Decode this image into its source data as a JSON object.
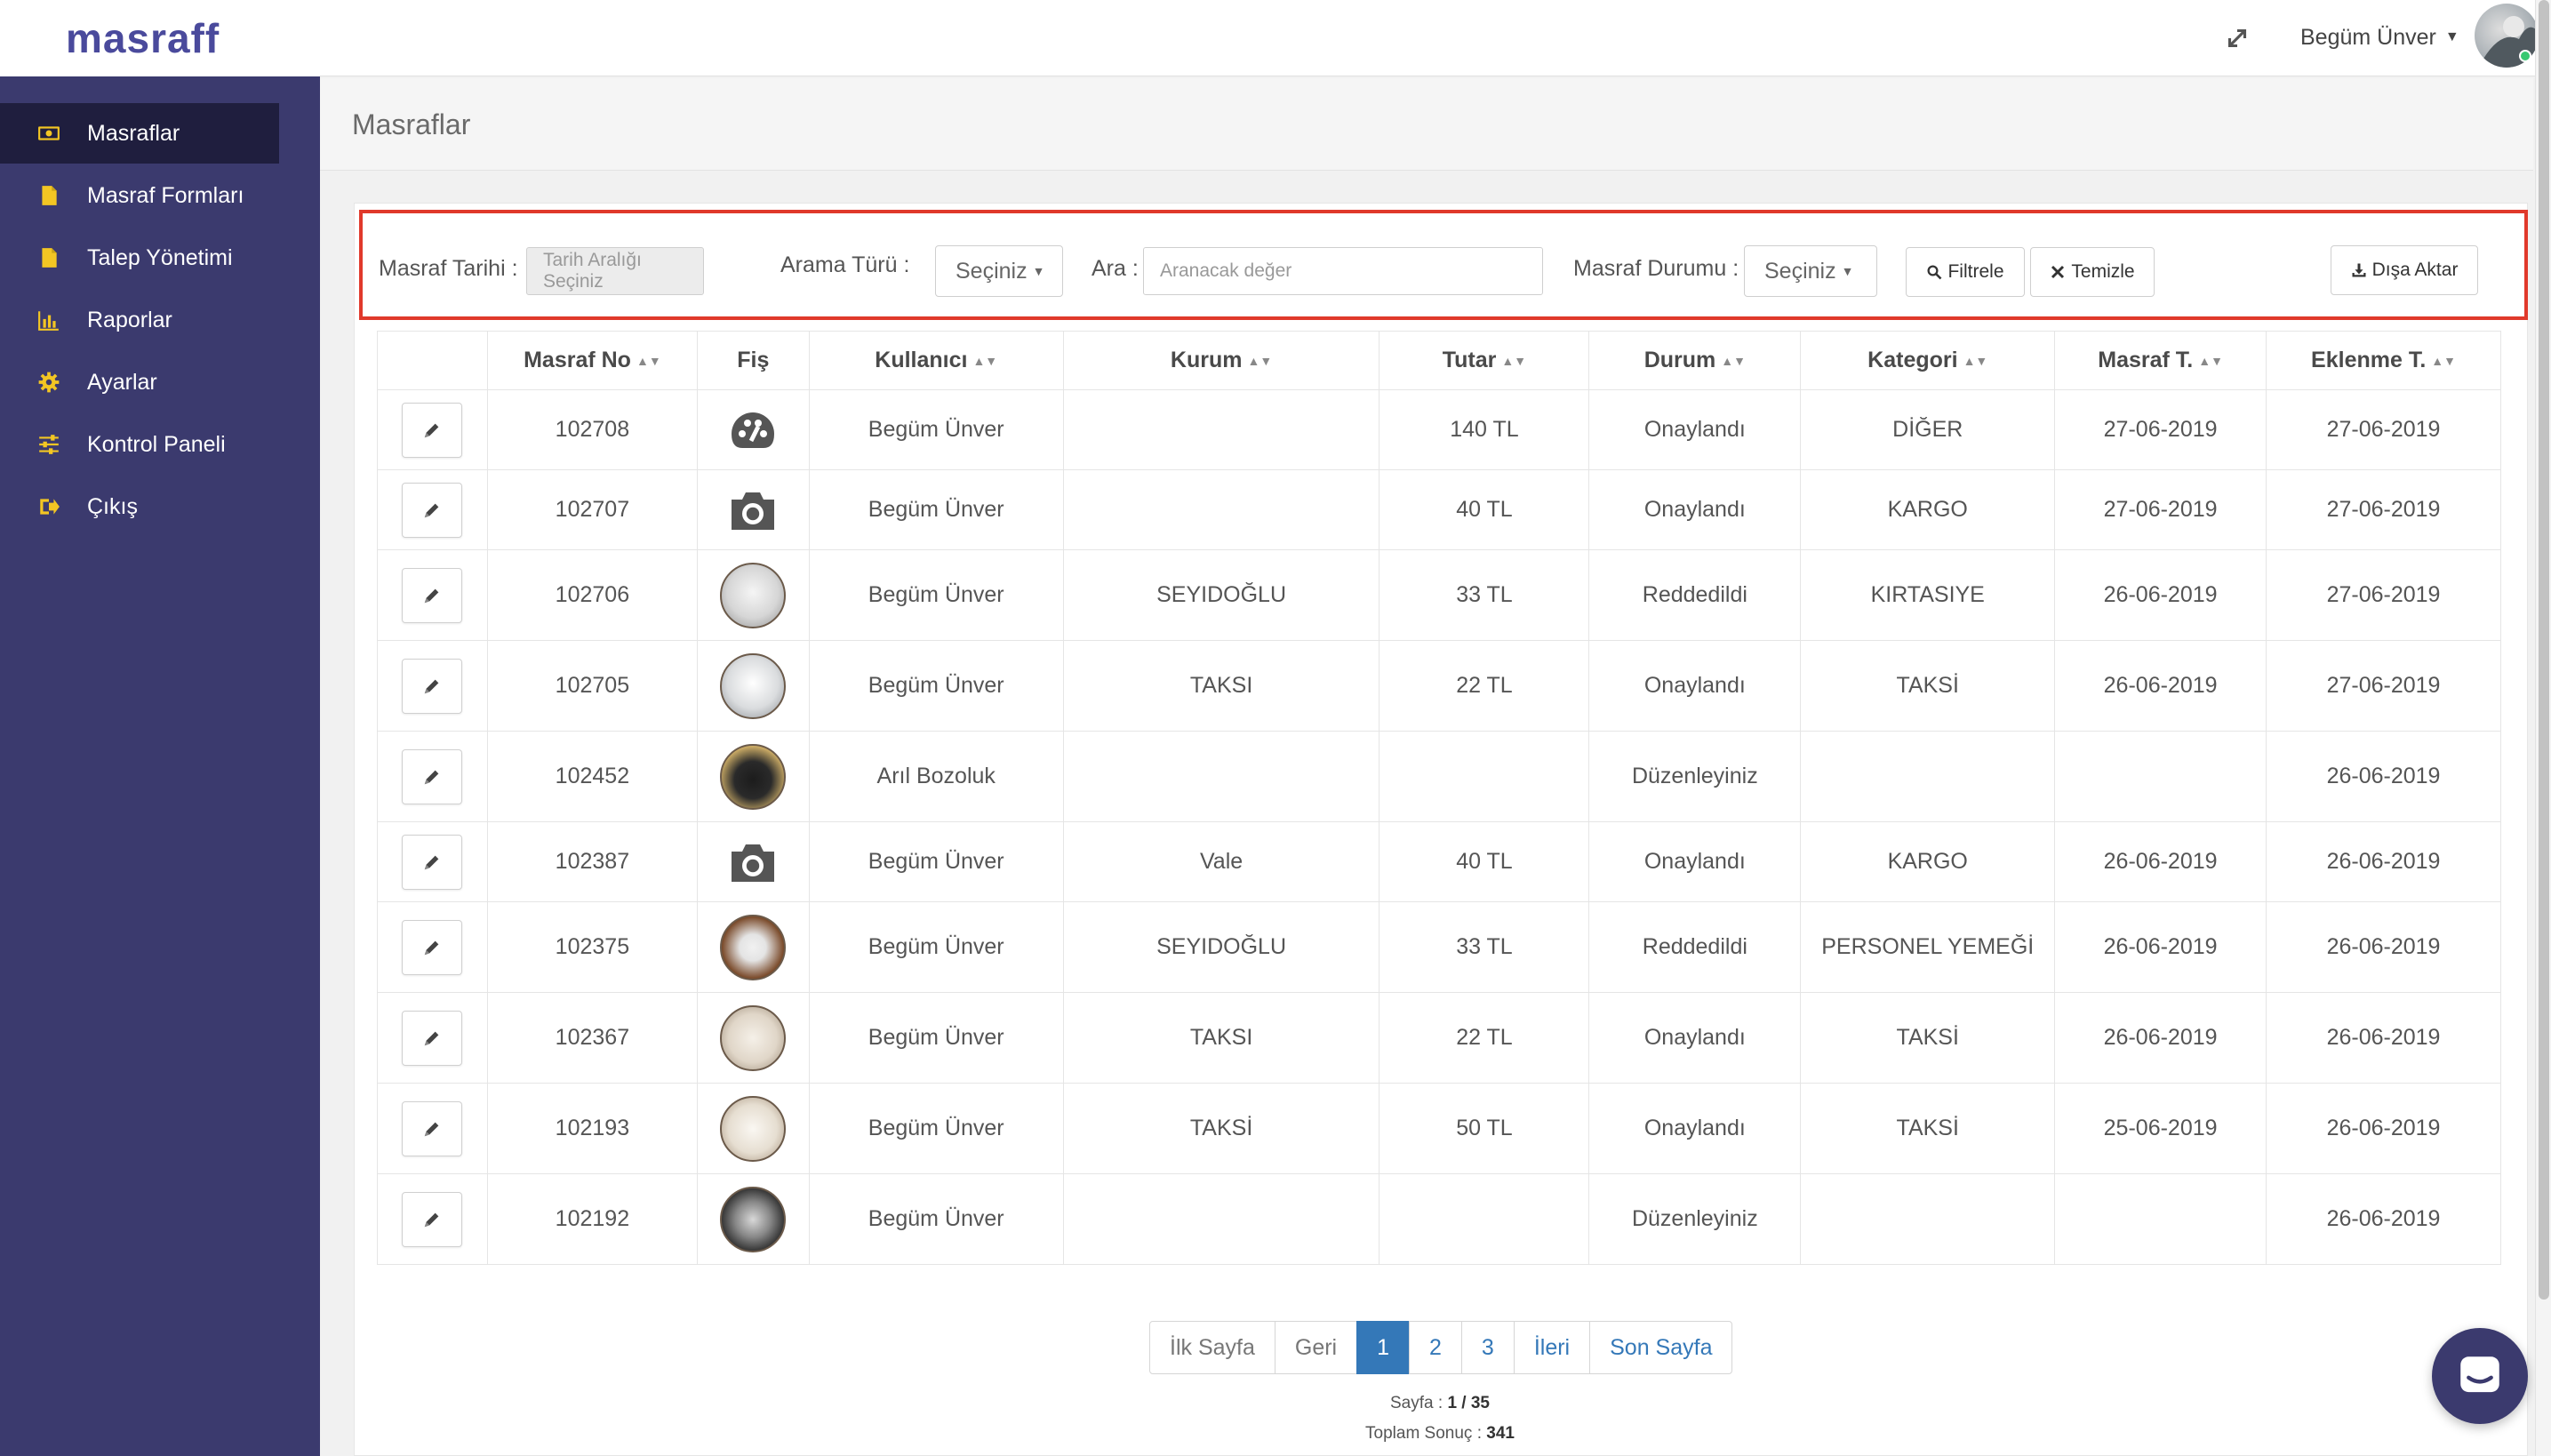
{
  "app": {
    "logo": "masraff"
  },
  "sidebar": {
    "items": [
      {
        "label": "Masraflar",
        "icon": "money-icon",
        "active": true
      },
      {
        "label": "Masraf Formları",
        "icon": "file-icon"
      },
      {
        "label": "Talep Yönetimi",
        "icon": "file-icon"
      },
      {
        "label": "Raporlar",
        "icon": "bar-chart-icon"
      },
      {
        "label": "Ayarlar",
        "icon": "gear-icon"
      },
      {
        "label": "Kontrol Paneli",
        "icon": "sliders-icon"
      },
      {
        "label": "Çıkış",
        "icon": "sign-out-icon"
      }
    ]
  },
  "topbar": {
    "user_name": "Begüm Ünver"
  },
  "page": {
    "title": "Masraflar"
  },
  "filters": {
    "date_label": "Masraf Tarihi :",
    "date_placeholder": "Tarih Aralığı Seçiniz",
    "search_type_label": "Arama Türü :",
    "search_type_value": "Seçiniz",
    "search_label": "Ara :",
    "search_placeholder": "Aranacak değer",
    "status_label": "Masraf Durumu :",
    "status_value": "Seçiniz",
    "filter_button": "Filtrele",
    "clear_button": "Temizle",
    "export_button": "Dışa Aktar"
  },
  "table": {
    "columns": [
      "",
      "Masraf No",
      "Fiş",
      "Kullanıcı",
      "Kurum",
      "Tutar",
      "Durum",
      "Kategori",
      "Masraf T.",
      "Eklenme T."
    ],
    "rows": [
      {
        "no": "102708",
        "fis": "palette-icon",
        "user": "Begüm Ünver",
        "kurum": "",
        "tutar": "140 TL",
        "durum": "Onaylandı",
        "kategori": "DİĞER",
        "masraf_t": "27-06-2019",
        "eklenme_t": "27-06-2019"
      },
      {
        "no": "102707",
        "fis": "camera-icon",
        "user": "Begüm Ünver",
        "kurum": "",
        "tutar": "40 TL",
        "durum": "Onaylandı",
        "kategori": "KARGO",
        "masraf_t": "27-06-2019",
        "eklenme_t": "27-06-2019"
      },
      {
        "no": "102706",
        "fis": "doc1",
        "user": "Begüm Ünver",
        "kurum": "SEYIDOĞLU",
        "tutar": "33 TL",
        "durum": "Reddedildi",
        "kategori": "KIRTASIYE",
        "masraf_t": "26-06-2019",
        "eklenme_t": "27-06-2019"
      },
      {
        "no": "102705",
        "fis": "doc2",
        "user": "Begüm Ünver",
        "kurum": "TAKSI",
        "tutar": "22 TL",
        "durum": "Onaylandı",
        "kategori": "TAKSİ",
        "masraf_t": "26-06-2019",
        "eklenme_t": "27-06-2019"
      },
      {
        "no": "102452",
        "fis": "dark",
        "user": "Arıl Bozoluk",
        "kurum": "",
        "tutar": "",
        "durum": "Düzenleyiniz",
        "kategori": "",
        "masraf_t": "",
        "eklenme_t": "26-06-2019"
      },
      {
        "no": "102387",
        "fis": "camera-icon",
        "user": "Begüm Ünver",
        "kurum": "Vale",
        "tutar": "40 TL",
        "durum": "Onaylandı",
        "kategori": "KARGO",
        "masraf_t": "26-06-2019",
        "eklenme_t": "26-06-2019"
      },
      {
        "no": "102375",
        "fis": "brown",
        "user": "Begüm Ünver",
        "kurum": "SEYIDOĞLU",
        "tutar": "33 TL",
        "durum": "Reddedildi",
        "kategori": "PERSONEL YEMEĞİ",
        "masraf_t": "26-06-2019",
        "eklenme_t": "26-06-2019"
      },
      {
        "no": "102367",
        "fis": "paper",
        "user": "Begüm Ünver",
        "kurum": "TAKSI",
        "tutar": "22 TL",
        "durum": "Onaylandı",
        "kategori": "TAKSİ",
        "masraf_t": "26-06-2019",
        "eklenme_t": "26-06-2019"
      },
      {
        "no": "102193",
        "fis": "paper2",
        "user": "Begüm Ünver",
        "kurum": "TAKSİ",
        "tutar": "50 TL",
        "durum": "Onaylandı",
        "kategori": "TAKSİ",
        "masraf_t": "25-06-2019",
        "eklenme_t": "26-06-2019"
      },
      {
        "no": "102192",
        "fis": "night",
        "user": "Begüm Ünver",
        "kurum": "",
        "tutar": "",
        "durum": "Düzenleyiniz",
        "kategori": "",
        "masraf_t": "",
        "eklenme_t": "26-06-2019"
      }
    ]
  },
  "pagination": {
    "first": "İlk Sayfa",
    "prev": "Geri",
    "pages": [
      "1",
      "2",
      "3"
    ],
    "current": "1",
    "next": "İleri",
    "last": "Son Sayfa",
    "page_label": "Sayfa :",
    "page_value": "1 / 35",
    "total_label": "Toplam Sonuç :",
    "total_value": "341"
  },
  "colors": {
    "sidebar_bg": "#3b3a6e",
    "sidebar_active": "#1f1e3e",
    "accent_icon": "#f3c623",
    "link": "#3478b8",
    "highlight_border": "#e0392b"
  }
}
